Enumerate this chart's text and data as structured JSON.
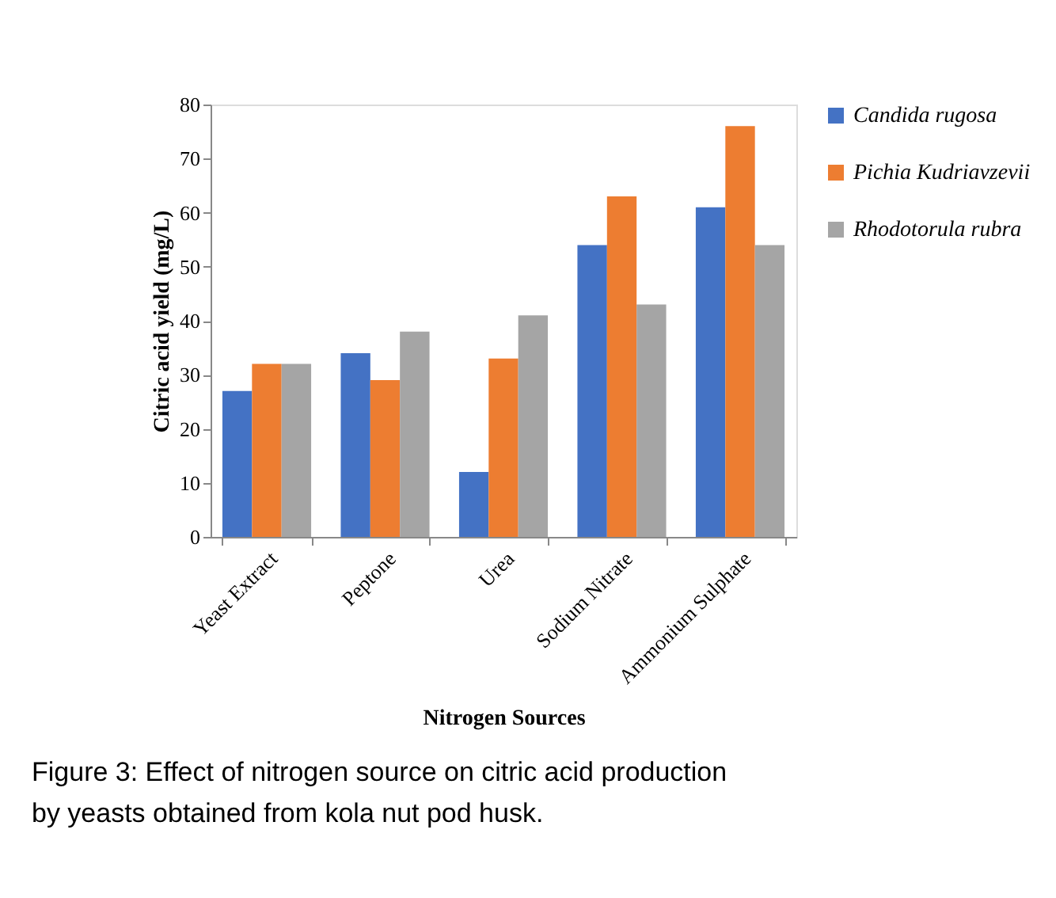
{
  "chart_data": {
    "type": "bar",
    "xlabel": "Nitrogen Sources",
    "ylabel": "Citric acid yield (mg/L)",
    "categories": [
      "Yeast Extract",
      "Peptone",
      "Urea",
      "Sodium Nitrate",
      "Ammonium Sulphate"
    ],
    "series": [
      {
        "name": "Candida rugosa",
        "color": "#4472c4",
        "values": [
          27,
          34,
          12,
          54,
          61
        ]
      },
      {
        "name": "Pichia Kudriavzevii",
        "color": "#ed7d31",
        "values": [
          32,
          29,
          33,
          63,
          76
        ]
      },
      {
        "name": "Rhodotorula rubra",
        "color": "#a5a5a5",
        "values": [
          32,
          38,
          41,
          43,
          54
        ]
      }
    ],
    "ylim": [
      0,
      80
    ],
    "yticks": [
      0,
      10,
      20,
      30,
      40,
      50,
      60,
      70,
      80
    ],
    "grid": false,
    "legend": "right",
    "annotations": [
      "Figure 3: Effect of nitrogen source on citric acid production by yeasts obtained from kola nut pod husk."
    ]
  }
}
